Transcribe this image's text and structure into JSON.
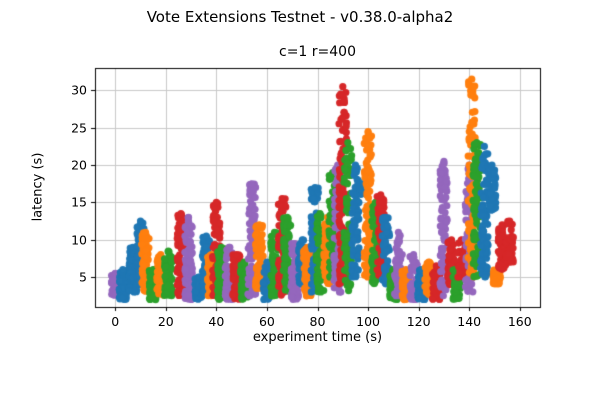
{
  "figure": {
    "title": "Vote Extensions Testnet - v0.38.0-alpha2"
  },
  "chart_data": {
    "type": "scatter",
    "title": "c=1 r=400",
    "xlabel": "experiment time (s)",
    "ylabel": "latency (s)",
    "xlim": [
      -8,
      168
    ],
    "ylim": [
      1,
      33
    ],
    "xticks": [
      0,
      20,
      40,
      60,
      80,
      100,
      120,
      140,
      160
    ],
    "yticks": [
      5,
      10,
      15,
      20,
      25,
      30
    ],
    "grid": true,
    "legend": "none",
    "marker": "circle",
    "colors": {
      "B": "#1f77b4",
      "O": "#ff7f0e",
      "G": "#2ca02c",
      "R": "#d62728",
      "P": "#9467bd"
    },
    "clusters": [
      {
        "x": 0,
        "color": "P",
        "y_min": 2.5,
        "y_max": 5.5,
        "n": 60
      },
      {
        "x": 3,
        "color": "B",
        "y_min": 2.0,
        "y_max": 6.0,
        "n": 80
      },
      {
        "x": 7,
        "color": "B",
        "y_min": 3.0,
        "y_max": 9.0,
        "n": 80
      },
      {
        "x": 10,
        "color": "B",
        "y_min": 4.0,
        "y_max": 12.5,
        "n": 60
      },
      {
        "x": 12,
        "color": "O",
        "y_min": 3.0,
        "y_max": 11.0,
        "n": 70
      },
      {
        "x": 15,
        "color": "G",
        "y_min": 2.0,
        "y_max": 6.0,
        "n": 70
      },
      {
        "x": 18,
        "color": "O",
        "y_min": 2.5,
        "y_max": 8.0,
        "n": 60
      },
      {
        "x": 21,
        "color": "G",
        "y_min": 2.5,
        "y_max": 8.5,
        "n": 70
      },
      {
        "x": 26,
        "color": "R",
        "y_min": 2.5,
        "y_max": 13.5,
        "n": 90
      },
      {
        "x": 29,
        "color": "P",
        "y_min": 2.0,
        "y_max": 13.0,
        "n": 90
      },
      {
        "x": 33,
        "color": "B",
        "y_min": 2.0,
        "y_max": 5.0,
        "n": 50
      },
      {
        "x": 36,
        "color": "B",
        "y_min": 3.0,
        "y_max": 10.5,
        "n": 70
      },
      {
        "x": 38,
        "color": "O",
        "y_min": 2.5,
        "y_max": 8.0,
        "n": 60
      },
      {
        "x": 40,
        "color": "R",
        "y_min": 2.5,
        "y_max": 15.0,
        "n": 90
      },
      {
        "x": 42,
        "color": "G",
        "y_min": 2.0,
        "y_max": 9.0,
        "n": 70
      },
      {
        "x": 45,
        "color": "P",
        "y_min": 2.0,
        "y_max": 9.0,
        "n": 60
      },
      {
        "x": 48,
        "color": "R",
        "y_min": 2.0,
        "y_max": 8.0,
        "n": 70
      },
      {
        "x": 51,
        "color": "G",
        "y_min": 2.0,
        "y_max": 7.0,
        "n": 60
      },
      {
        "x": 54,
        "color": "P",
        "y_min": 2.5,
        "y_max": 17.5,
        "n": 90
      },
      {
        "x": 57,
        "color": "O",
        "y_min": 3.5,
        "y_max": 12.0,
        "n": 70
      },
      {
        "x": 60,
        "color": "B",
        "y_min": 2.0,
        "y_max": 7.0,
        "n": 60
      },
      {
        "x": 63,
        "color": "G",
        "y_min": 2.5,
        "y_max": 11.0,
        "n": 60
      },
      {
        "x": 66,
        "color": "R",
        "y_min": 2.5,
        "y_max": 15.5,
        "n": 80
      },
      {
        "x": 68,
        "color": "G",
        "y_min": 3.0,
        "y_max": 13.0,
        "n": 70
      },
      {
        "x": 71,
        "color": "P",
        "y_min": 2.0,
        "y_max": 9.5,
        "n": 70
      },
      {
        "x": 74,
        "color": "B",
        "y_min": 4.0,
        "y_max": 10.0,
        "n": 60
      },
      {
        "x": 76,
        "color": "O",
        "y_min": 2.5,
        "y_max": 9.0,
        "n": 60
      },
      {
        "x": 79,
        "color": "B",
        "y_min": 3.0,
        "y_max": 17.0,
        "n": 80
      },
      {
        "x": 81,
        "color": "G",
        "y_min": 3.0,
        "y_max": 13.5,
        "n": 60
      },
      {
        "x": 84,
        "color": "O",
        "y_min": 4.0,
        "y_max": 13.0,
        "n": 70
      },
      {
        "x": 86,
        "color": "G",
        "y_min": 5.0,
        "y_max": 19.0,
        "n": 60
      },
      {
        "x": 88,
        "color": "P",
        "y_min": 3.0,
        "y_max": 20.0,
        "n": 80
      },
      {
        "x": 90,
        "color": "R",
        "y_min": 4.0,
        "y_max": 30.5,
        "n": 100
      },
      {
        "x": 92,
        "color": "G",
        "y_min": 3.0,
        "y_max": 23.0,
        "n": 80
      },
      {
        "x": 95,
        "color": "B",
        "y_min": 5.0,
        "y_max": 20.0,
        "n": 70
      },
      {
        "x": 98,
        "color": "B",
        "y_min": 16.0,
        "y_max": 17.5,
        "n": 30
      },
      {
        "x": 100,
        "color": "O",
        "y_min": 5.0,
        "y_max": 24.5,
        "n": 100
      },
      {
        "x": 103,
        "color": "G",
        "y_min": 4.0,
        "y_max": 15.0,
        "n": 60
      },
      {
        "x": 105,
        "color": "R",
        "y_min": 5.0,
        "y_max": 16.0,
        "n": 60
      },
      {
        "x": 107,
        "color": "B",
        "y_min": 4.0,
        "y_max": 13.0,
        "n": 60
      },
      {
        "x": 110,
        "color": "G",
        "y_min": 2.0,
        "y_max": 6.0,
        "n": 50
      },
      {
        "x": 112,
        "color": "P",
        "y_min": 2.5,
        "y_max": 11.0,
        "n": 60
      },
      {
        "x": 115,
        "color": "O",
        "y_min": 2.0,
        "y_max": 6.0,
        "n": 50
      },
      {
        "x": 118,
        "color": "P",
        "y_min": 2.0,
        "y_max": 8.0,
        "n": 50
      },
      {
        "x": 121,
        "color": "B",
        "y_min": 2.0,
        "y_max": 6.0,
        "n": 50
      },
      {
        "x": 124,
        "color": "O",
        "y_min": 2.5,
        "y_max": 7.0,
        "n": 50
      },
      {
        "x": 127,
        "color": "R",
        "y_min": 2.0,
        "y_max": 6.5,
        "n": 50
      },
      {
        "x": 130,
        "color": "P",
        "y_min": 2.5,
        "y_max": 20.5,
        "n": 90
      },
      {
        "x": 133,
        "color": "R",
        "y_min": 4.0,
        "y_max": 10.0,
        "n": 60
      },
      {
        "x": 135,
        "color": "G",
        "y_min": 2.0,
        "y_max": 6.0,
        "n": 50
      },
      {
        "x": 137,
        "color": "R",
        "y_min": 5.0,
        "y_max": 10.0,
        "n": 50
      },
      {
        "x": 140,
        "color": "P",
        "y_min": 3.0,
        "y_max": 20.0,
        "n": 70
      },
      {
        "x": 141,
        "color": "O",
        "y_min": 5.0,
        "y_max": 31.5,
        "n": 100
      },
      {
        "x": 143,
        "color": "G",
        "y_min": 5.0,
        "y_max": 23.0,
        "n": 80
      },
      {
        "x": 146,
        "color": "B",
        "y_min": 5.0,
        "y_max": 22.5,
        "n": 80
      },
      {
        "x": 149,
        "color": "B",
        "y_min": 14.0,
        "y_max": 20.0,
        "n": 50
      },
      {
        "x": 151,
        "color": "O",
        "y_min": 4.0,
        "y_max": 6.0,
        "n": 40
      },
      {
        "x": 153,
        "color": "R",
        "y_min": 6.0,
        "y_max": 12.0,
        "n": 60
      },
      {
        "x": 156,
        "color": "R",
        "y_min": 7.0,
        "y_max": 12.5,
        "n": 50
      }
    ]
  }
}
